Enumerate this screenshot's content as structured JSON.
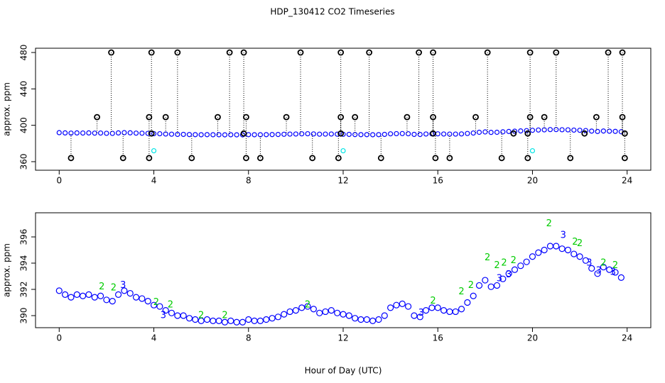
{
  "title": "HDP_130412  CO2 Timeseries",
  "chart_data": [
    {
      "type": "scatter",
      "ylabel": "approx. ppm",
      "xlim": [
        -1,
        25
      ],
      "xticks": [
        0,
        4,
        8,
        12,
        16,
        20,
        24
      ],
      "ylim": [
        350.6,
        484.7
      ],
      "yticks": [
        360,
        400,
        440,
        480
      ],
      "series": [
        {
          "color": "#0000ff",
          "marker": "circle",
          "x": [
            0,
            0.25,
            0.5,
            0.75,
            1,
            1.25,
            1.5,
            1.75,
            2,
            2.25,
            2.5,
            2.75,
            3,
            3.25,
            3.5,
            3.75,
            4,
            4.25,
            4.5,
            4.75,
            5,
            5.25,
            5.5,
            5.75,
            6,
            6.25,
            6.5,
            6.75,
            7,
            7.25,
            7.5,
            7.75,
            8,
            8.25,
            8.5,
            8.75,
            9,
            9.25,
            9.5,
            9.75,
            10,
            10.25,
            10.5,
            10.75,
            11,
            11.25,
            11.5,
            11.75,
            12,
            12.25,
            12.5,
            12.75,
            13,
            13.25,
            13.5,
            13.75,
            14,
            14.25,
            14.5,
            14.75,
            15,
            15.25,
            15.5,
            15.75,
            16,
            16.25,
            16.5,
            16.75,
            17,
            17.25,
            17.5,
            17.75,
            18,
            18.25,
            18.5,
            18.75,
            19,
            19.25,
            19.5,
            19.75,
            20,
            20.25,
            20.5,
            20.75,
            21,
            21.25,
            21.5,
            21.75,
            22,
            22.25,
            22.5,
            22.75,
            23,
            23.25,
            23.5,
            23.75
          ],
          "values": [
            391.9,
            391.6,
            391.4,
            391.6,
            391.5,
            391.6,
            391.4,
            391.5,
            391.2,
            391.1,
            391.6,
            391.9,
            391.7,
            391.4,
            391.3,
            391.1,
            390.8,
            390.7,
            390.4,
            390.2,
            390.0,
            390.0,
            389.8,
            389.7,
            389.6,
            389.7,
            389.6,
            389.6,
            389.5,
            389.6,
            389.5,
            389.5,
            389.7,
            389.6,
            389.6,
            389.7,
            389.8,
            389.9,
            390.1,
            390.3,
            390.4,
            390.6,
            390.7,
            390.5,
            390.2,
            390.3,
            390.4,
            390.2,
            390.1,
            390.0,
            389.8,
            389.7,
            389.7,
            389.6,
            389.7,
            390.0,
            390.6,
            390.8,
            390.9,
            390.7,
            390.0,
            389.9,
            390.4,
            390.6,
            390.6,
            390.4,
            390.3,
            390.3,
            390.5,
            391.0,
            391.5,
            392.3,
            392.7,
            392.2,
            392.3,
            392.8,
            393.2,
            393.5,
            393.8,
            394.1,
            394.5,
            394.8,
            395.0,
            395.3,
            395.3,
            395.1,
            395.0,
            394.7,
            394.5,
            394.2,
            393.6,
            393.2,
            393.7,
            393.5,
            393.3,
            392.9
          ]
        },
        {
          "color": "#000000",
          "marker": "circle",
          "drop": true,
          "x": [
            0.5,
            1.6,
            2.2,
            2.7,
            3.8,
            3.8,
            3.9,
            3.9,
            4.5,
            5.0,
            5.6,
            6.7,
            7.2,
            7.8,
            7.8,
            7.9,
            7.9,
            8.5,
            9.6,
            10.2,
            10.7,
            11.8,
            11.9,
            11.9,
            11.9,
            12.5,
            13.1,
            13.6,
            14.7,
            15.2,
            15.8,
            15.8,
            15.8,
            15.9,
            16.5,
            17.6,
            18.1,
            18.7,
            19.2,
            19.8,
            19.8,
            19.9,
            19.9,
            20.5,
            21.0,
            21.6,
            22.2,
            22.7,
            23.2,
            23.8,
            23.8,
            23.9,
            23.9
          ],
          "values": [
            364,
            409,
            480,
            364,
            364,
            409,
            480,
            391,
            409,
            480,
            364,
            409,
            480,
            480,
            391,
            409,
            364,
            364,
            409,
            480,
            364,
            364,
            409,
            480,
            391,
            409,
            480,
            364,
            409,
            480,
            480,
            409,
            391,
            364,
            364,
            409,
            480,
            364,
            391,
            364,
            391,
            409,
            480,
            409,
            480,
            364,
            391,
            409,
            480,
            480,
            409,
            391,
            364
          ]
        },
        {
          "color": "#00e5e5",
          "marker": "circle",
          "x": [
            4.0,
            12.0,
            20.0
          ],
          "values": [
            372,
            372,
            372
          ]
        }
      ]
    },
    {
      "type": "scatter",
      "ylabel": "approx. ppm",
      "xlabel": "Hour of Day (UTC)",
      "xlim": [
        -1,
        25
      ],
      "xticks": [
        0,
        4,
        8,
        12,
        16,
        20,
        24
      ],
      "ylim": [
        389.08,
        397.84
      ],
      "yticks": [
        390,
        392,
        394,
        396
      ],
      "series": [
        {
          "color": "#0000ff",
          "marker": "circle",
          "x": [
            0,
            0.25,
            0.5,
            0.75,
            1,
            1.25,
            1.5,
            1.75,
            2,
            2.25,
            2.5,
            2.75,
            3,
            3.25,
            3.5,
            3.75,
            4,
            4.25,
            4.5,
            4.75,
            5,
            5.25,
            5.5,
            5.75,
            6,
            6.25,
            6.5,
            6.75,
            7,
            7.25,
            7.5,
            7.75,
            8,
            8.25,
            8.5,
            8.75,
            9,
            9.25,
            9.5,
            9.75,
            10,
            10.25,
            10.5,
            10.75,
            11,
            11.25,
            11.5,
            11.75,
            12,
            12.25,
            12.5,
            12.75,
            13,
            13.25,
            13.5,
            13.75,
            14,
            14.25,
            14.5,
            14.75,
            15,
            15.25,
            15.5,
            15.75,
            16,
            16.25,
            16.5,
            16.75,
            17,
            17.25,
            17.5,
            17.75,
            18,
            18.25,
            18.5,
            18.75,
            19,
            19.25,
            19.5,
            19.75,
            20,
            20.25,
            20.5,
            20.75,
            21,
            21.25,
            21.5,
            21.75,
            22,
            22.25,
            22.5,
            22.75,
            23,
            23.25,
            23.5,
            23.75
          ],
          "values": [
            391.9,
            391.6,
            391.4,
            391.6,
            391.5,
            391.6,
            391.4,
            391.5,
            391.2,
            391.1,
            391.6,
            391.9,
            391.7,
            391.4,
            391.3,
            391.1,
            390.8,
            390.7,
            390.4,
            390.2,
            390.0,
            390.0,
            389.8,
            389.7,
            389.6,
            389.7,
            389.6,
            389.6,
            389.5,
            389.6,
            389.5,
            389.5,
            389.7,
            389.6,
            389.6,
            389.7,
            389.8,
            389.9,
            390.1,
            390.3,
            390.4,
            390.6,
            390.7,
            390.5,
            390.2,
            390.3,
            390.4,
            390.2,
            390.1,
            390.0,
            389.8,
            389.7,
            389.7,
            389.6,
            389.7,
            390.0,
            390.6,
            390.8,
            390.9,
            390.7,
            390.0,
            389.9,
            390.4,
            390.6,
            390.6,
            390.4,
            390.3,
            390.3,
            390.5,
            391.0,
            391.5,
            392.3,
            392.7,
            392.2,
            392.3,
            392.8,
            393.2,
            393.5,
            393.8,
            394.1,
            394.5,
            394.8,
            395.0,
            395.3,
            395.3,
            395.1,
            395.0,
            394.7,
            394.5,
            394.2,
            393.6,
            393.2,
            393.7,
            393.5,
            393.3,
            392.9
          ]
        },
        {
          "color": "#00cc00",
          "marker": "text",
          "symbol": "2",
          "x": [
            1.8,
            2.3,
            4.1,
            4.7,
            6.0,
            7.0,
            10.5,
            15.8,
            17.0,
            17.4,
            18.1,
            18.5,
            18.8,
            19.2,
            20.7,
            21.8,
            22.0,
            23.0,
            23.5
          ],
          "values": [
            392.2,
            392.1,
            391.0,
            390.8,
            390.0,
            390.0,
            390.8,
            391.1,
            391.8,
            392.3,
            394.4,
            393.8,
            394.0,
            394.2,
            397.0,
            395.6,
            395.5,
            394.0,
            393.8
          ]
        },
        {
          "color": "#0000ff",
          "marker": "text",
          "symbol": "3",
          "x": [
            2.7,
            4.4,
            15.3,
            18.6,
            19.0,
            21.3,
            22.4,
            22.8,
            23.4
          ],
          "values": [
            392.3,
            390.0,
            390.2,
            392.8,
            393.1,
            396.1,
            394.0,
            393.4,
            393.3
          ]
        }
      ]
    }
  ]
}
